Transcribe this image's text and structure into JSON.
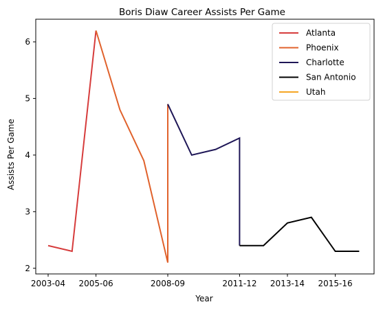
{
  "chart_data": {
    "type": "line",
    "title": "Boris Diaw Career Assists Per Game",
    "xlabel": "Year",
    "ylabel": "Assists Per Game",
    "x_categories": [
      "2003-04",
      "2004-05",
      "2005-06",
      "2006-07",
      "2007-08",
      "2008-09",
      "2009-10",
      "2010-11",
      "2011-12",
      "2012-13",
      "2013-14",
      "2014-15",
      "2015-16",
      "2016-17"
    ],
    "x_tick_labels": [
      "2003-04",
      "2005-06",
      "2008-09",
      "2011-12",
      "2013-14",
      "2015-16"
    ],
    "y_ticks": [
      2,
      3,
      4,
      5,
      6
    ],
    "ylim": [
      1.9,
      6.4
    ],
    "grid": false,
    "legend_position": "top-right",
    "series": [
      {
        "name": "Atlanta",
        "color": "#d63b3b",
        "points": [
          {
            "x": "2003-04",
            "y": 2.4
          },
          {
            "x": "2004-05",
            "y": 2.3
          },
          {
            "x": "2005-06",
            "y": 6.2
          }
        ]
      },
      {
        "name": "Phoenix",
        "color": "#e0612b",
        "points": [
          {
            "x": "2005-06",
            "y": 6.2
          },
          {
            "x": "2006-07",
            "y": 4.8
          },
          {
            "x": "2007-08",
            "y": 3.9
          },
          {
            "x": "2008-09",
            "y": 2.1
          },
          {
            "x": "2008-09",
            "y": 4.9
          }
        ]
      },
      {
        "name": "Charlotte",
        "color": "#1e1656",
        "points": [
          {
            "x": "2008-09",
            "y": 4.9
          },
          {
            "x": "2009-10",
            "y": 4.0
          },
          {
            "x": "2010-11",
            "y": 4.1
          },
          {
            "x": "2011-12",
            "y": 4.3
          },
          {
            "x": "2011-12",
            "y": 2.4
          }
        ]
      },
      {
        "name": "San Antonio",
        "color": "#000000",
        "points": [
          {
            "x": "2011-12",
            "y": 2.4
          },
          {
            "x": "2012-13",
            "y": 2.4
          },
          {
            "x": "2013-14",
            "y": 2.8
          },
          {
            "x": "2014-15",
            "y": 2.9
          },
          {
            "x": "2015-16",
            "y": 2.3
          },
          {
            "x": "2016-17",
            "y": 2.3
          }
        ]
      },
      {
        "name": "Utah",
        "color": "#f5a623",
        "points": []
      }
    ]
  }
}
